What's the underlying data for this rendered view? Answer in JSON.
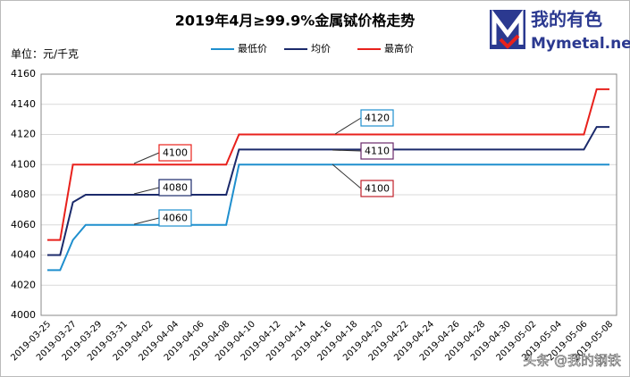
{
  "chart_data": {
    "type": "line",
    "title": "2019年4月≥99.9%金属铽价格走势",
    "unit_label": "单位：元/千克",
    "categories": [
      "2019-03-25",
      null,
      "2019-03-27",
      null,
      "2019-03-29",
      null,
      "2019-03-31",
      null,
      "2019-04-02",
      null,
      "2019-04-04",
      null,
      "2019-04-06",
      null,
      "2019-04-08",
      null,
      "2019-04-10",
      null,
      "2019-04-12",
      null,
      "2019-04-14",
      null,
      "2019-04-16",
      null,
      "2019-04-18",
      null,
      "2019-04-20",
      null,
      "2019-04-22",
      null,
      "2019-04-24",
      null,
      "2019-04-26",
      null,
      "2019-04-28",
      null,
      "2019-04-30",
      null,
      "2019-05-02",
      null,
      "2019-05-04",
      null,
      "2019-05-06",
      null,
      "2019-05-08"
    ],
    "series": [
      {
        "name": "最低价",
        "color": "#1f8fce",
        "values": [
          4030,
          4030,
          4050,
          4060,
          4060,
          4060,
          4060,
          4060,
          4060,
          4060,
          4060,
          4060,
          4060,
          4060,
          4060,
          4100,
          4100,
          4100,
          4100,
          4100,
          4100,
          4100,
          4100,
          4100,
          4100,
          4100,
          4100,
          4100,
          4100,
          4100,
          4100,
          4100,
          4100,
          4100,
          4100,
          4100,
          4100,
          4100,
          4100,
          4100,
          4100,
          4100,
          4100,
          4100,
          4100
        ]
      },
      {
        "name": "均价",
        "color": "#1b2a6b",
        "values": [
          4040,
          4040,
          4075,
          4080,
          4080,
          4080,
          4080,
          4080,
          4080,
          4080,
          4080,
          4080,
          4080,
          4080,
          4080,
          4110,
          4110,
          4110,
          4110,
          4110,
          4110,
          4110,
          4110,
          4110,
          4110,
          4110,
          4110,
          4110,
          4110,
          4110,
          4110,
          4110,
          4110,
          4110,
          4110,
          4110,
          4110,
          4110,
          4110,
          4110,
          4110,
          4110,
          4110,
          4125,
          4125
        ]
      },
      {
        "name": "最高价",
        "color": "#e8211c",
        "values": [
          4050,
          4050,
          4100,
          4100,
          4100,
          4100,
          4100,
          4100,
          4100,
          4100,
          4100,
          4100,
          4100,
          4100,
          4100,
          4120,
          4120,
          4120,
          4120,
          4120,
          4120,
          4120,
          4120,
          4120,
          4120,
          4120,
          4120,
          4120,
          4120,
          4120,
          4120,
          4120,
          4120,
          4120,
          4120,
          4120,
          4120,
          4120,
          4120,
          4120,
          4120,
          4120,
          4120,
          4150,
          4150
        ]
      }
    ],
    "ylim": [
      4000,
      4160
    ],
    "yticks": [
      4000,
      4020,
      4040,
      4060,
      4080,
      4100,
      4120,
      4140,
      4160
    ],
    "grid": true,
    "annotations": [
      "4100",
      "4080",
      "4060",
      "4120",
      "4110",
      "4100"
    ]
  },
  "logo": {
    "brand": "我的有色",
    "site": "Mymetal.net"
  },
  "watermark": "头条 @我的钢铁"
}
